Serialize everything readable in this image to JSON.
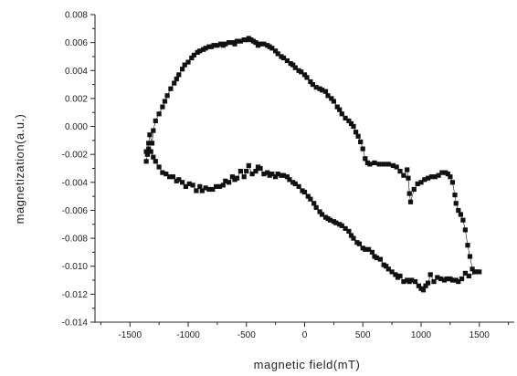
{
  "chart_data": {
    "type": "scatter",
    "title": "",
    "xlabel": "magnetic field(mT)",
    "ylabel": "magnetization(a.u.)",
    "xlim": [
      -1800,
      1800
    ],
    "ylim": [
      -0.014,
      0.008
    ],
    "x_ticks": [
      -1500,
      -1000,
      -500,
      0,
      500,
      1000,
      1500
    ],
    "x_tick_labels": [
      "-1500",
      "-1000",
      "-500",
      "0",
      "500",
      "1000",
      "1500"
    ],
    "y_ticks": [
      -0.014,
      -0.012,
      -0.01,
      -0.008,
      -0.006,
      -0.004,
      -0.002,
      0.0,
      0.002,
      0.004,
      0.006,
      0.008
    ],
    "y_tick_labels": [
      "-0.014",
      "-0.012",
      "-0.010",
      "-0.008",
      "-0.006",
      "-0.004",
      "-0.002",
      "0.000",
      "0.002",
      "0.004",
      "0.006",
      "0.008"
    ],
    "grid": false,
    "legend": "none",
    "marker": "square",
    "marker_color": "#111111",
    "series": [
      {
        "name": "",
        "points": [
          [
            -1360,
            -0.0025
          ],
          [
            -1350,
            -0.002
          ],
          [
            -1340,
            -0.0012
          ],
          [
            -1330,
            -0.0006
          ],
          [
            -1310,
            -0.0012
          ],
          [
            -1300,
            -0.0003
          ],
          [
            -1280,
            0.0004
          ],
          [
            -1250,
            0.0009
          ],
          [
            -1220,
            0.0014
          ],
          [
            -1200,
            0.0018
          ],
          [
            -1180,
            0.0022
          ],
          [
            -1150,
            0.0027
          ],
          [
            -1120,
            0.0031
          ],
          [
            -1100,
            0.0034
          ],
          [
            -1080,
            0.0037
          ],
          [
            -1050,
            0.0041
          ],
          [
            -1030,
            0.0044
          ],
          [
            -1000,
            0.0046
          ],
          [
            -970,
            0.0049
          ],
          [
            -950,
            0.0051
          ],
          [
            -920,
            0.0053
          ],
          [
            -900,
            0.0054
          ],
          [
            -870,
            0.0055
          ],
          [
            -850,
            0.0056
          ],
          [
            -820,
            0.0057
          ],
          [
            -800,
            0.0057
          ],
          [
            -780,
            0.0058
          ],
          [
            -750,
            0.0058
          ],
          [
            -720,
            0.0059
          ],
          [
            -700,
            0.0058
          ],
          [
            -680,
            0.0059
          ],
          [
            -650,
            0.006
          ],
          [
            -620,
            0.006
          ],
          [
            -600,
            0.0059
          ],
          [
            -580,
            0.0061
          ],
          [
            -550,
            0.0061
          ],
          [
            -520,
            0.0062
          ],
          [
            -500,
            0.0062
          ],
          [
            -480,
            0.0063
          ],
          [
            -460,
            0.0062
          ],
          [
            -440,
            0.0061
          ],
          [
            -420,
            0.006
          ],
          [
            -400,
            0.0058
          ],
          [
            -380,
            0.0059
          ],
          [
            -350,
            0.0059
          ],
          [
            -320,
            0.0058
          ],
          [
            -300,
            0.0057
          ],
          [
            -280,
            0.0056
          ],
          [
            -250,
            0.0054
          ],
          [
            -230,
            0.0052
          ],
          [
            -200,
            0.005
          ],
          [
            -180,
            0.0049
          ],
          [
            -150,
            0.0047
          ],
          [
            -120,
            0.0045
          ],
          [
            -100,
            0.0044
          ],
          [
            -80,
            0.0042
          ],
          [
            -50,
            0.004
          ],
          [
            -30,
            0.0039
          ],
          [
            0,
            0.0037
          ],
          [
            20,
            0.0035
          ],
          [
            50,
            0.0032
          ],
          [
            70,
            0.003
          ],
          [
            100,
            0.0028
          ],
          [
            130,
            0.0027
          ],
          [
            150,
            0.0026
          ],
          [
            180,
            0.0025
          ],
          [
            200,
            0.0022
          ],
          [
            230,
            0.002
          ],
          [
            250,
            0.0018
          ],
          [
            280,
            0.0014
          ],
          [
            300,
            0.0012
          ],
          [
            320,
            0.0009
          ],
          [
            350,
            0.0006
          ],
          [
            380,
            0.0004
          ],
          [
            400,
            0.0002
          ],
          [
            420,
            0.0
          ],
          [
            440,
            -0.0004
          ],
          [
            460,
            -0.0007
          ],
          [
            480,
            -0.0011
          ],
          [
            500,
            -0.0016
          ],
          [
            520,
            -0.0023
          ],
          [
            540,
            -0.0026
          ],
          [
            560,
            -0.0027
          ],
          [
            600,
            -0.0026
          ],
          [
            640,
            -0.0027
          ],
          [
            680,
            -0.0027
          ],
          [
            720,
            -0.0027
          ],
          [
            760,
            -0.0028
          ],
          [
            790,
            -0.0029
          ],
          [
            820,
            -0.0032
          ],
          [
            850,
            -0.0035
          ],
          [
            880,
            -0.0031
          ],
          [
            890,
            -0.0037
          ],
          [
            900,
            -0.0048
          ],
          [
            910,
            -0.0054
          ],
          [
            940,
            -0.0045
          ],
          [
            970,
            -0.0041
          ],
          [
            1000,
            -0.004
          ],
          [
            1030,
            -0.0038
          ],
          [
            1060,
            -0.0037
          ],
          [
            1090,
            -0.0036
          ],
          [
            1120,
            -0.0036
          ],
          [
            1150,
            -0.0035
          ],
          [
            1180,
            -0.0033
          ],
          [
            1210,
            -0.0033
          ],
          [
            1230,
            -0.0034
          ],
          [
            1250,
            -0.0036
          ],
          [
            1270,
            -0.004
          ],
          [
            1290,
            -0.0049
          ],
          [
            1300,
            -0.0055
          ],
          [
            1320,
            -0.006
          ],
          [
            1340,
            -0.0063
          ],
          [
            1360,
            -0.0067
          ],
          [
            1380,
            -0.0074
          ],
          [
            1400,
            -0.0085
          ],
          [
            1420,
            -0.0093
          ],
          [
            1440,
            -0.0102
          ],
          [
            1460,
            -0.0104
          ],
          [
            1480,
            -0.0104
          ],
          [
            1500,
            -0.0104
          ],
          [
            1410,
            -0.0107
          ],
          [
            1380,
            -0.0105
          ],
          [
            1350,
            -0.0109
          ],
          [
            1320,
            -0.0111
          ],
          [
            1300,
            -0.011
          ],
          [
            1270,
            -0.011
          ],
          [
            1250,
            -0.0109
          ],
          [
            1220,
            -0.0109
          ],
          [
            1200,
            -0.011
          ],
          [
            1170,
            -0.0109
          ],
          [
            1140,
            -0.0108
          ],
          [
            1110,
            -0.0111
          ],
          [
            1080,
            -0.0106
          ],
          [
            1060,
            -0.0112
          ],
          [
            1040,
            -0.0114
          ],
          [
            1020,
            -0.0117
          ],
          [
            1000,
            -0.0116
          ],
          [
            980,
            -0.0114
          ],
          [
            950,
            -0.0111
          ],
          [
            920,
            -0.011
          ],
          [
            900,
            -0.0111
          ],
          [
            880,
            -0.011
          ],
          [
            850,
            -0.0111
          ],
          [
            820,
            -0.0107
          ],
          [
            800,
            -0.0108
          ],
          [
            780,
            -0.0106
          ],
          [
            750,
            -0.0104
          ],
          [
            720,
            -0.0102
          ],
          [
            700,
            -0.01
          ],
          [
            680,
            -0.0099
          ],
          [
            650,
            -0.0095
          ],
          [
            620,
            -0.0094
          ],
          [
            600,
            -0.0093
          ],
          [
            580,
            -0.009
          ],
          [
            550,
            -0.0088
          ],
          [
            520,
            -0.0088
          ],
          [
            500,
            -0.0087
          ],
          [
            470,
            -0.0084
          ],
          [
            450,
            -0.0083
          ],
          [
            420,
            -0.008
          ],
          [
            400,
            -0.0078
          ],
          [
            380,
            -0.0075
          ],
          [
            350,
            -0.0073
          ],
          [
            320,
            -0.0071
          ],
          [
            300,
            -0.007
          ],
          [
            270,
            -0.0069
          ],
          [
            250,
            -0.0068
          ],
          [
            220,
            -0.0067
          ],
          [
            200,
            -0.0066
          ],
          [
            180,
            -0.0065
          ],
          [
            150,
            -0.0063
          ],
          [
            130,
            -0.0061
          ],
          [
            100,
            -0.0058
          ],
          [
            80,
            -0.0055
          ],
          [
            50,
            -0.0052
          ],
          [
            30,
            -0.005
          ],
          [
            0,
            -0.0047
          ],
          [
            -20,
            -0.0046
          ],
          [
            -50,
            -0.0043
          ],
          [
            -80,
            -0.0041
          ],
          [
            -100,
            -0.004
          ],
          [
            -130,
            -0.0038
          ],
          [
            -150,
            -0.0036
          ],
          [
            -180,
            -0.0035
          ],
          [
            -200,
            -0.0035
          ],
          [
            -230,
            -0.0034
          ],
          [
            -250,
            -0.0036
          ],
          [
            -280,
            -0.0034
          ],
          [
            -300,
            -0.0035
          ],
          [
            -320,
            -0.0033
          ],
          [
            -350,
            -0.0034
          ],
          [
            -380,
            -0.003
          ],
          [
            -400,
            -0.0029
          ],
          [
            -420,
            -0.0032
          ],
          [
            -450,
            -0.0034
          ],
          [
            -480,
            -0.0028
          ],
          [
            -500,
            -0.0032
          ],
          [
            -520,
            -0.0036
          ],
          [
            -550,
            -0.0032
          ],
          [
            -580,
            -0.0037
          ],
          [
            -600,
            -0.0038
          ],
          [
            -620,
            -0.0036
          ],
          [
            -650,
            -0.004
          ],
          [
            -680,
            -0.0039
          ],
          [
            -700,
            -0.0042
          ],
          [
            -730,
            -0.0043
          ],
          [
            -760,
            -0.0043
          ],
          [
            -790,
            -0.0045
          ],
          [
            -820,
            -0.0045
          ],
          [
            -850,
            -0.0044
          ],
          [
            -880,
            -0.0046
          ],
          [
            -900,
            -0.0043
          ],
          [
            -930,
            -0.0046
          ],
          [
            -960,
            -0.0042
          ],
          [
            -990,
            -0.0041
          ],
          [
            -1020,
            -0.0043
          ],
          [
            -1050,
            -0.004
          ],
          [
            -1080,
            -0.0038
          ],
          [
            -1100,
            -0.0039
          ],
          [
            -1130,
            -0.0036
          ],
          [
            -1160,
            -0.0036
          ],
          [
            -1190,
            -0.0034
          ],
          [
            -1220,
            -0.0033
          ],
          [
            -1250,
            -0.0029
          ],
          [
            -1280,
            -0.0025
          ],
          [
            -1300,
            -0.0022
          ],
          [
            -1320,
            -0.0018
          ],
          [
            -1340,
            -0.0016
          ],
          [
            -1360,
            -0.0018
          ]
        ]
      }
    ]
  }
}
